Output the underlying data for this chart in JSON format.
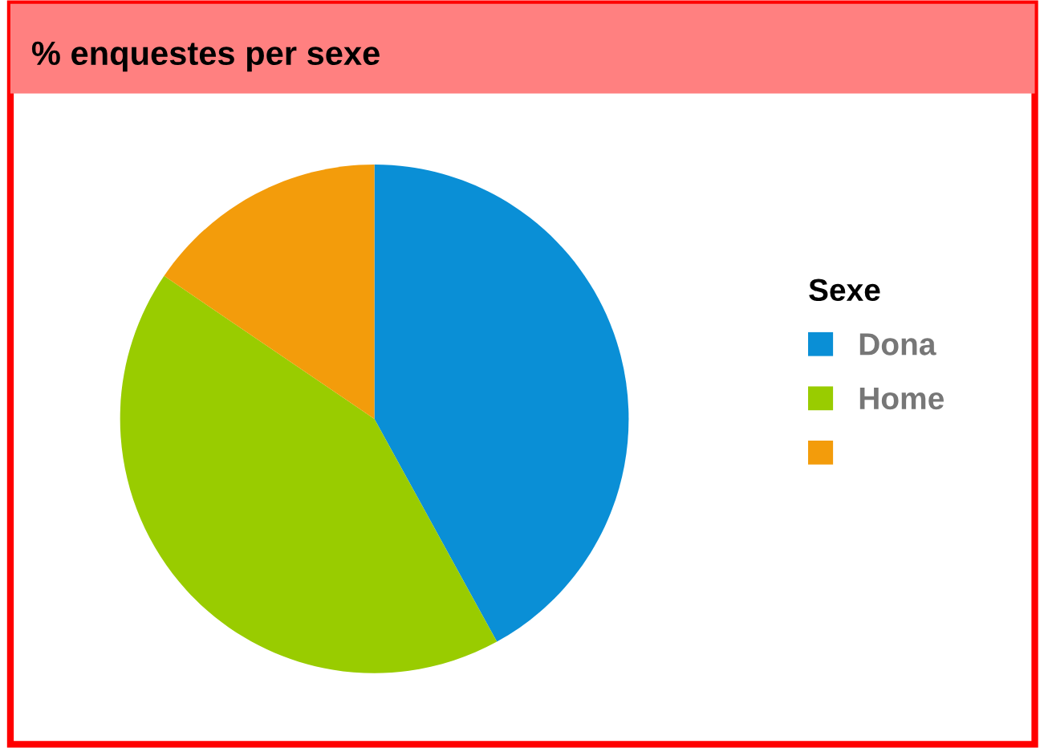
{
  "chart_data": {
    "type": "pie",
    "title": "% enquestes per sexe",
    "legend_title": "Sexe",
    "categories": [
      "Dona",
      "Home",
      null
    ],
    "values": [
      42,
      42.5,
      15.5
    ],
    "colors": [
      "#0a8fd6",
      "#99cc00",
      "#f39c0b"
    ],
    "legend": "right"
  }
}
